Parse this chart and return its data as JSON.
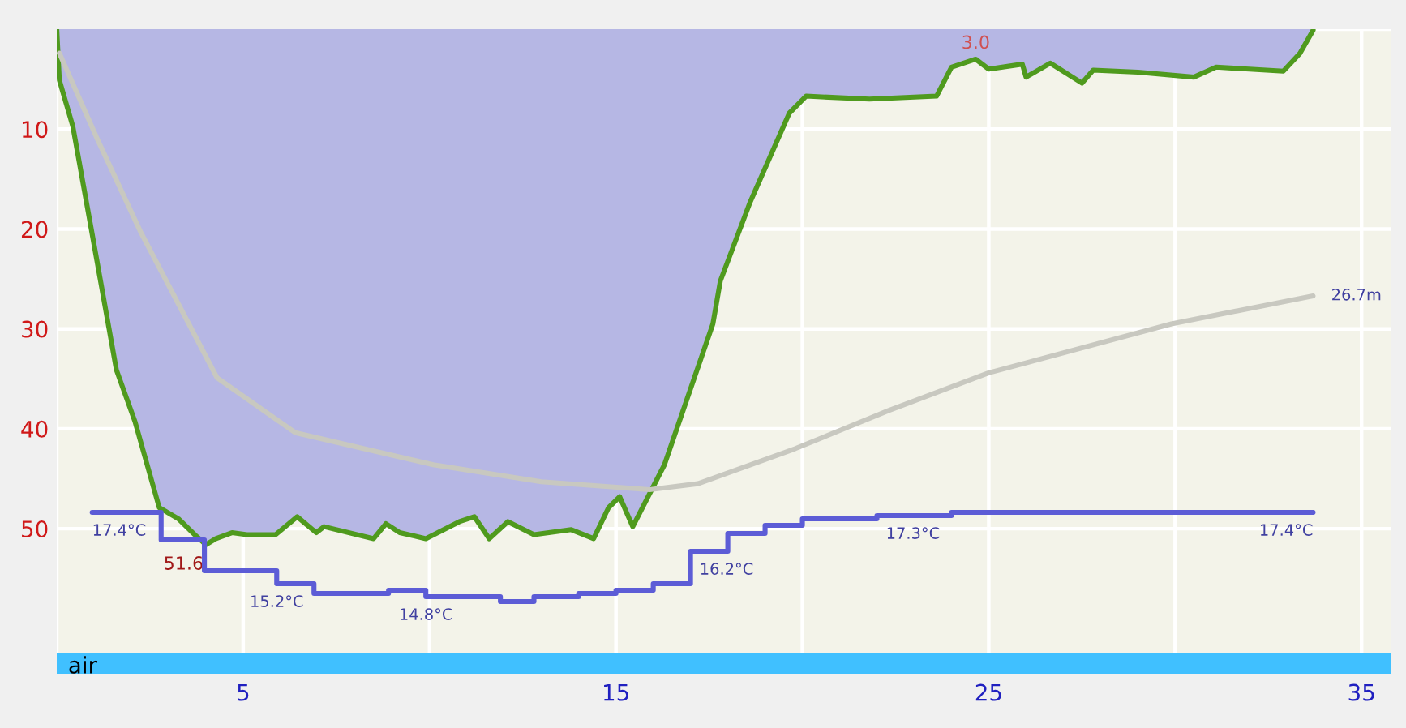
{
  "chart_data": {
    "type": "area",
    "xlim": [
      0,
      35.8
    ],
    "ylim": [
      64.6,
      0
    ],
    "y2lim": [
      12.4,
      32.3
    ],
    "xticks": [
      {
        "value": 0,
        "label": null
      },
      5,
      {
        "value": 10,
        "label": null
      },
      15,
      {
        "value": 20,
        "label": null
      },
      25,
      {
        "value": 30,
        "label": null
      },
      35
    ],
    "yticks": [
      {
        "value": 0,
        "label": null
      },
      10,
      20,
      30,
      40,
      50
    ],
    "tick_labels": "xy",
    "grid": true,
    "annotations": [
      {
        "text": "51.6",
        "x": 4.0,
        "y": 51.6
      },
      {
        "text": "3.0",
        "x": 24.65,
        "y": 3.0
      }
    ],
    "bands": [
      {
        "axis": "y",
        "from": 62.5,
        "to": 64.6,
        "label": "air",
        "color": "#40c0ff"
      }
    ],
    "series": [
      {
        "color": "#b6b7e4",
        "x": [
          0,
          0.07,
          0.43,
          0.94,
          1.6,
          2.1,
          2.75,
          3.26,
          3.7,
          4.0,
          4.27,
          4.7,
          5.1,
          5.87,
          6.45,
          6.96,
          7.17,
          8.5,
          8.83,
          9.2,
          9.9,
          10.8,
          11.2,
          11.6,
          12.1,
          12.8,
          13.8,
          14.4,
          14.8,
          15.1,
          15.45,
          16.3,
          17.6,
          17.8,
          18.6,
          19.65,
          20.1,
          21.8,
          23.6,
          24.0,
          24.65,
          25.0,
          25.9,
          26.0,
          26.65,
          27.5,
          27.8,
          29.0,
          30.5,
          31.1,
          32.9,
          33.35,
          33.7
        ],
        "values": [
          0,
          5.1,
          9.7,
          20.3,
          34.1,
          39.3,
          47.9,
          49.0,
          50.6,
          51.6,
          51.0,
          50.4,
          50.6,
          50.6,
          48.8,
          50.4,
          49.8,
          51.0,
          49.5,
          50.4,
          51.0,
          49.3,
          48.8,
          51.0,
          49.3,
          50.6,
          50.1,
          51.0,
          47.9,
          46.8,
          49.8,
          43.6,
          29.5,
          25.2,
          17.3,
          8.4,
          6.7,
          7.0,
          6.7,
          3.8,
          3.0,
          4.0,
          3.5,
          4.8,
          3.4,
          5.4,
          4.1,
          4.3,
          4.8,
          3.8,
          4.2,
          2.4,
          0.1
        ]
      },
      {
        "type": "line",
        "color": "#c8c8c0",
        "x": [
          0.07,
          1.1,
          2.25,
          4.3,
          6.4,
          10.1,
          13.0,
          15.9,
          17.2,
          19.8,
          22.3,
          25.0,
          29.9,
          33.7
        ],
        "values": [
          2.4,
          11.1,
          20.3,
          34.9,
          40.4,
          43.6,
          45.3,
          46.1,
          45.5,
          42.0,
          38.2,
          34.4,
          29.5,
          26.7
        ],
        "value_labels": [
          null,
          null,
          null,
          null,
          null,
          null,
          null,
          null,
          null,
          null,
          null,
          null,
          null,
          "26.7m"
        ]
      },
      {
        "type": "line",
        "axis": "y2",
        "color": "#5c5cd6",
        "x": [
          0.95,
          2.8,
          2.8,
          3.96,
          3.96,
          5.9,
          5.9,
          6.9,
          6.9,
          8.9,
          8.9,
          9.9,
          9.9,
          11.9,
          11.9,
          12.8,
          12.8,
          14.0,
          14.0,
          15.0,
          15.0,
          16.0,
          16.0,
          17.0,
          17.0,
          18.0,
          18.0,
          19.0,
          19.0,
          20.0,
          20.0,
          22.0,
          22.0,
          24.0,
          24.0,
          33.7
        ],
        "values": [
          17.4,
          17.4,
          16.55,
          16.55,
          15.6,
          15.6,
          15.2,
          15.2,
          14.9,
          14.9,
          15.0,
          15.0,
          14.8,
          14.8,
          14.65,
          14.65,
          14.8,
          14.8,
          14.9,
          14.9,
          15.0,
          15.0,
          15.2,
          15.2,
          16.2,
          16.2,
          16.75,
          16.75,
          17.0,
          17.0,
          17.2,
          17.2,
          17.3,
          17.3,
          17.4,
          17.4
        ],
        "value_labels": [
          "17.4°C",
          null,
          null,
          null,
          null,
          null,
          "15.2°C",
          null,
          null,
          null,
          null,
          null,
          "14.8°C",
          null,
          null,
          null,
          null,
          null,
          null,
          null,
          null,
          null,
          null,
          null,
          "16.2°C",
          null,
          null,
          null,
          null,
          null,
          null,
          null,
          "17.3°C",
          null,
          null,
          "17.4°C"
        ]
      }
    ]
  }
}
